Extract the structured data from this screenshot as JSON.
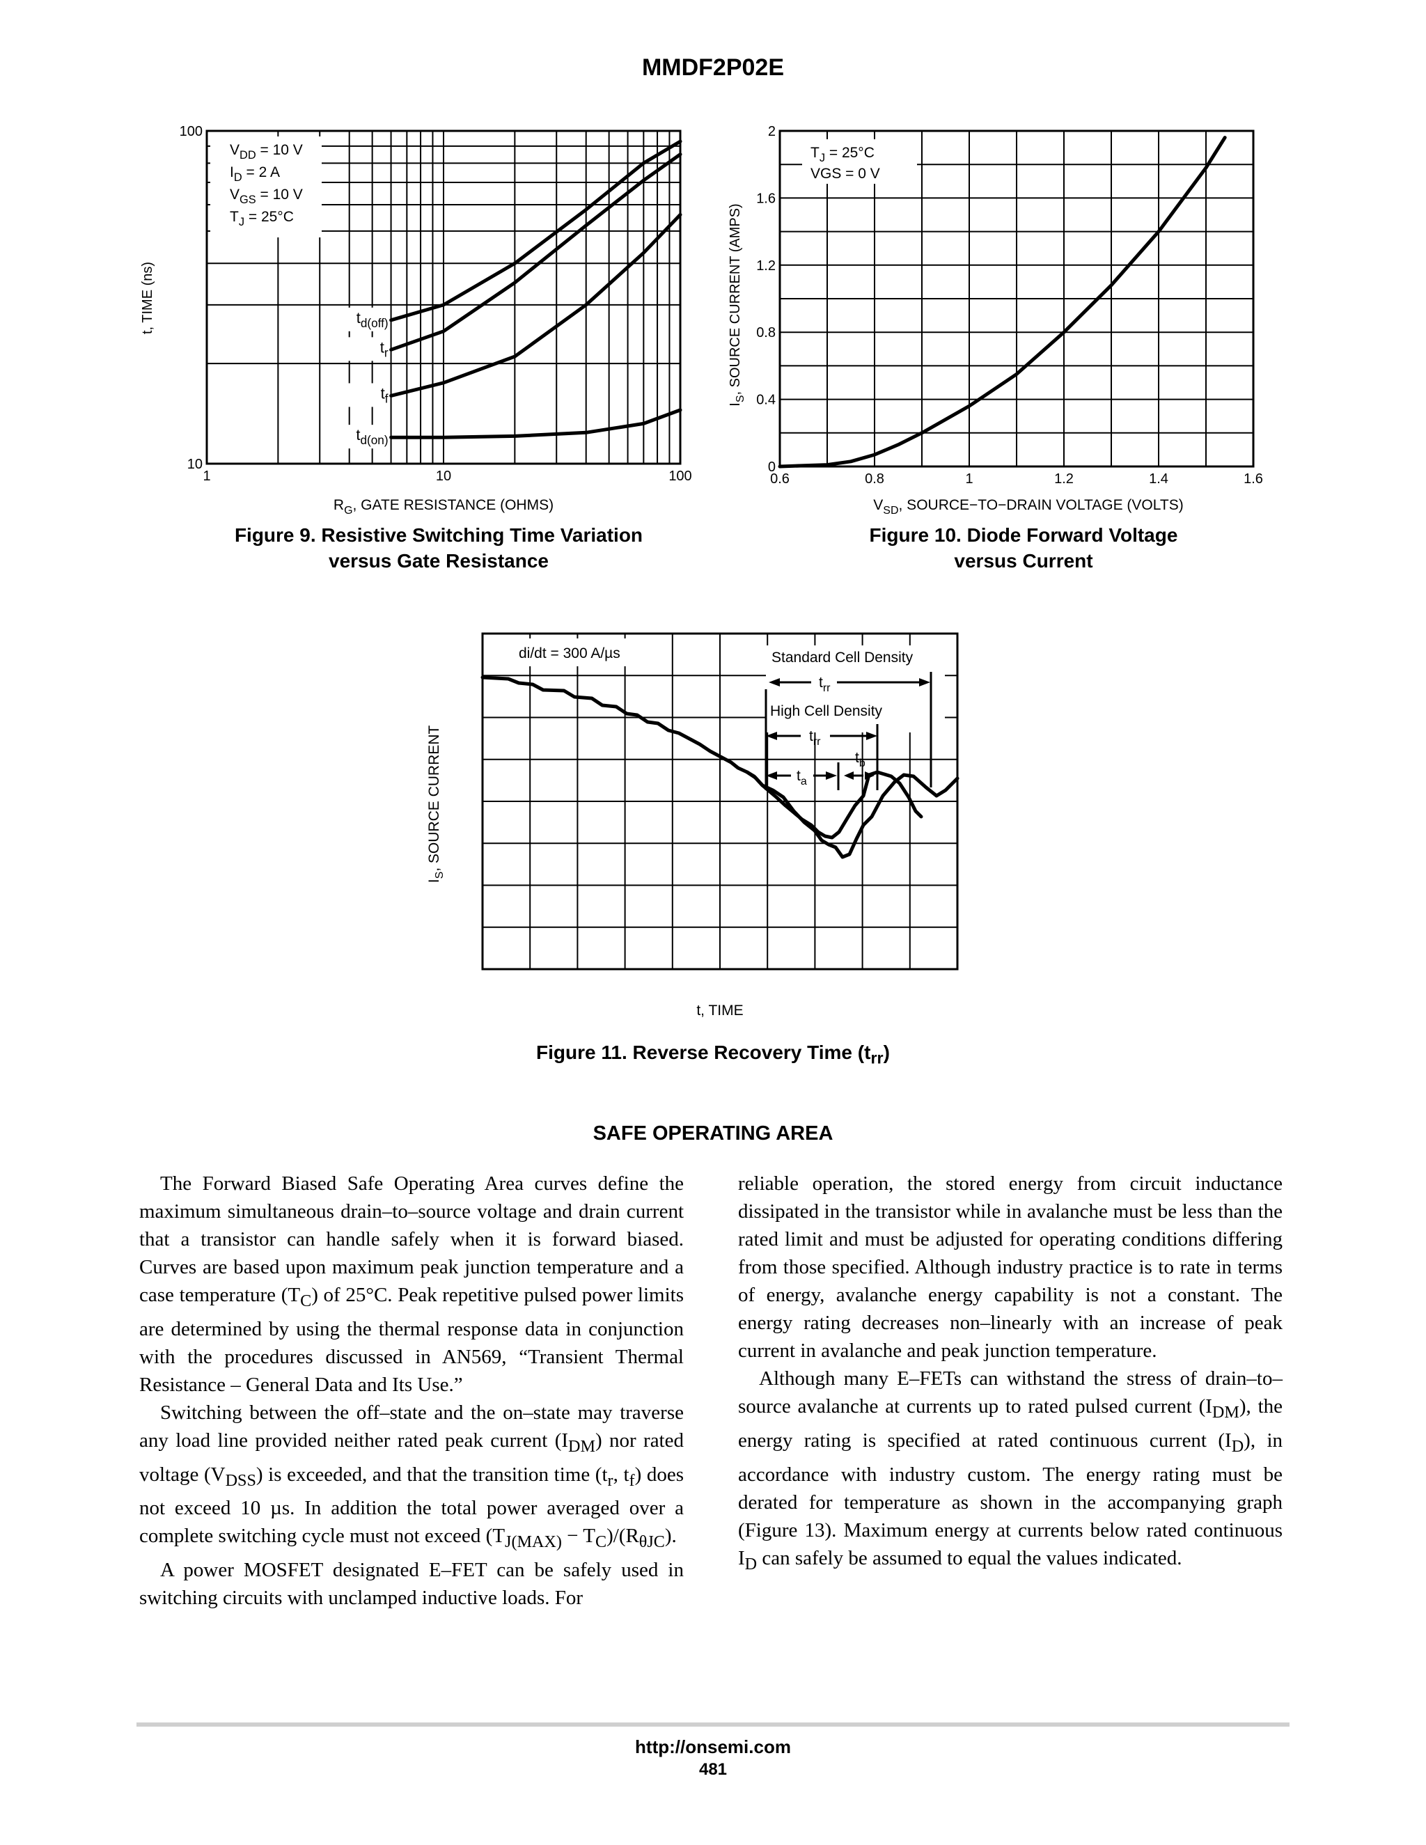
{
  "header": {
    "title": "MMDF2P02E"
  },
  "figure9": {
    "caption_line1": "Figure 9. Resistive Switching Time Variation",
    "caption_line2": "versus Gate Resistance",
    "conditions": [
      {
        "main": "V",
        "sub": "DD",
        "rest": " = 10 V"
      },
      {
        "main": "I",
        "sub": "D",
        "rest": " = 2 A"
      },
      {
        "main": "V",
        "sub": "GS",
        "rest": " = 10 V"
      },
      {
        "main": "T",
        "sub": "J",
        "rest": " = 25°C"
      }
    ],
    "chart_data": {
      "type": "line",
      "xlabel_main": "R",
      "xlabel_sub": "G",
      "xlabel_rest": ", GATE RESISTANCE (OHMS)",
      "ylabel": "t, TIME (ns)",
      "xscale": "log",
      "yscale": "log",
      "xlim": [
        1,
        100
      ],
      "ylim": [
        10,
        100
      ],
      "x_tick_labels": [
        "1",
        "10",
        "100"
      ],
      "y_tick_labels": [
        "10",
        "100"
      ],
      "grid": true,
      "series": [
        {
          "name_main": "t",
          "name_sub": "d(off)",
          "x": [
            6,
            10,
            20,
            40,
            70,
            100
          ],
          "y": [
            27,
            30,
            40,
            58,
            80,
            93
          ]
        },
        {
          "name_main": "t",
          "name_sub": "r",
          "x": [
            6,
            10,
            20,
            40,
            70,
            100
          ],
          "y": [
            22,
            25,
            35,
            52,
            71,
            85
          ]
        },
        {
          "name_main": "t",
          "name_sub": "f",
          "x": [
            6,
            10,
            20,
            40,
            70,
            100
          ],
          "y": [
            16,
            17.5,
            21,
            30,
            43,
            56
          ]
        },
        {
          "name_main": "t",
          "name_sub": "d(on)",
          "x": [
            6,
            10,
            20,
            40,
            70,
            100
          ],
          "y": [
            12,
            12,
            12.1,
            12.4,
            13.2,
            14.5
          ]
        }
      ]
    }
  },
  "figure10": {
    "caption_line1": "Figure 10. Diode Forward Voltage",
    "caption_line2": "versus Current",
    "conditions": [
      {
        "main": "T",
        "sub": "J",
        "rest": " = 25°C"
      },
      {
        "main": "VGS = 0 V",
        "sub": "",
        "rest": ""
      }
    ],
    "chart_data": {
      "type": "line",
      "xlabel_main": "V",
      "xlabel_sub": "SD",
      "xlabel_rest": ", SOURCE−TO−DRAIN VOLTAGE (VOLTS)",
      "ylabel_main": "I",
      "ylabel_sub": "S",
      "ylabel_rest": ", SOURCE CURRENT (AMPS)",
      "xlim": [
        0.6,
        1.6
      ],
      "ylim": [
        0,
        2
      ],
      "x_tick_labels": [
        "0.6",
        "0.8",
        "1",
        "1.2",
        "1.4",
        "1.6"
      ],
      "y_tick_labels": [
        "0",
        "0.4",
        "0.8",
        "1.2",
        "1.6",
        "2"
      ],
      "grid": true,
      "series": [
        {
          "x": [
            0.6,
            0.7,
            0.75,
            0.8,
            0.85,
            0.9,
            1.0,
            1.1,
            1.2,
            1.3,
            1.4,
            1.5,
            1.54
          ],
          "y": [
            0,
            0.01,
            0.03,
            0.07,
            0.13,
            0.2,
            0.36,
            0.55,
            0.8,
            1.08,
            1.4,
            1.78,
            1.96
          ]
        }
      ]
    }
  },
  "figure11": {
    "caption_main": "Figure 11. Reverse Recovery Time (t",
    "caption_sub": "rr",
    "caption_end": ")",
    "ylabel_main": "I",
    "ylabel_sub": "S",
    "ylabel_rest": ", SOURCE CURRENT",
    "xlabel": "t, TIME",
    "didt": "di/dt = 300 A/µs",
    "standard_label": "Standard Cell Density",
    "high_label": "High Cell Density",
    "trr_main": "t",
    "trr_sub": "rr",
    "ta_main": "t",
    "ta_sub": "a",
    "tb_main": "t",
    "tb_sub": "b",
    "grid": true
  },
  "section": {
    "title": "SAFE OPERATING AREA",
    "left_paragraphs": [
      "The Forward Biased Safe Operating Area curves define the maximum simultaneous drain–to–source voltage and drain current that a transistor can handle safely when it is forward biased. Curves are based upon maximum peak junction temperature and a case temperature (TC) of 25°C. Peak repetitive pulsed power limits are determined by using the thermal response data in conjunction with the procedures discussed in AN569, “Transient Thermal Resistance – General Data and Its Use.”",
      "Switching between the off–state and the on–state may traverse any load line provided neither rated peak current (IDM) nor rated voltage (VDSS) is exceeded, and that the transition time (tr, tf) does not exceed 10 µs. In addition the total power averaged over a complete switching cycle must not exceed (TJ(MAX) − TC)/(RθJC).",
      "A power MOSFET designated E–FET can be safely used in switching circuits with unclamped inductive loads. For"
    ],
    "right_paragraphs": [
      "reliable operation, the stored energy from circuit inductance dissipated in the transistor while in avalanche must be less than the rated limit and must be adjusted for operating conditions differing from those specified. Although industry practice is to rate in terms of energy, avalanche energy capability is not a constant. The energy rating decreases non–linearly with an increase of peak current in avalanche and peak junction temperature.",
      "Although many E–FETs can withstand the stress of drain–to–source avalanche at currents up to rated pulsed current (IDM), the energy rating is specified at rated continuous current (ID), in accordance with industry custom. The energy rating must be derated for temperature as shown in the accompanying graph (Figure 13). Maximum energy at currents below rated continuous ID can safely be assumed to equal the values indicated."
    ]
  },
  "footer": {
    "url": "http://onsemi.com",
    "page": "481"
  }
}
